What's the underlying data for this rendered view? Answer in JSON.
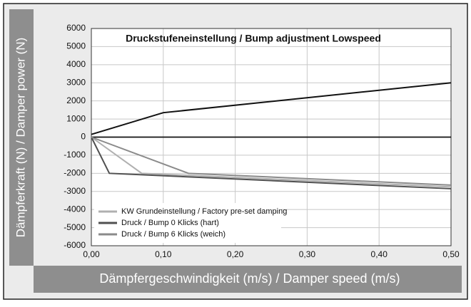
{
  "chart_data": {
    "type": "line",
    "title": "Druckstufeneinstellung / Bump adjustment Lowspeed",
    "x_label": "Dämpfergeschwindigkeit (m/s) / Damper speed (m/s)",
    "y_label": "Dämpferkraft (N) / Damper power (N)",
    "xlim": [
      0,
      0.5
    ],
    "xticks": [
      {
        "value": 0,
        "label": "0,00"
      },
      {
        "value": 0.1,
        "label": "0,10"
      },
      {
        "value": 0.2,
        "label": "0,20"
      },
      {
        "value": 0.3,
        "label": "0,30"
      },
      {
        "value": 0.4,
        "label": "0,40"
      },
      {
        "value": 0.5,
        "label": "0,50"
      }
    ],
    "ylim": [
      -6000,
      6000
    ],
    "yticks": [
      -6000,
      -5000,
      -4000,
      -3000,
      -2000,
      -1000,
      0,
      1000,
      2000,
      3000,
      4000,
      5000,
      6000
    ],
    "grid": true,
    "legend": "lower left",
    "series": [
      {
        "color": "#111111",
        "x": [
          0,
          0.1,
          0.5
        ],
        "values": [
          150,
          1350,
          3000
        ]
      },
      {
        "name": "KW Grundeinstellung / Factory pre-set damping",
        "color": "#b0b0b0",
        "x": [
          0,
          0.07,
          0.5
        ],
        "values": [
          0,
          -2000,
          -2750
        ]
      },
      {
        "name": "Druck / Bump 0 Klicks (hart)",
        "color": "#505050",
        "x": [
          0,
          0.025,
          0.5
        ],
        "values": [
          0,
          -2000,
          -2850
        ]
      },
      {
        "name": "Druck / Bump 6 Klicks (weich)",
        "color": "#8a8a8a",
        "x": [
          0,
          0.135,
          0.5
        ],
        "values": [
          0,
          -2000,
          -2650
        ]
      }
    ]
  }
}
